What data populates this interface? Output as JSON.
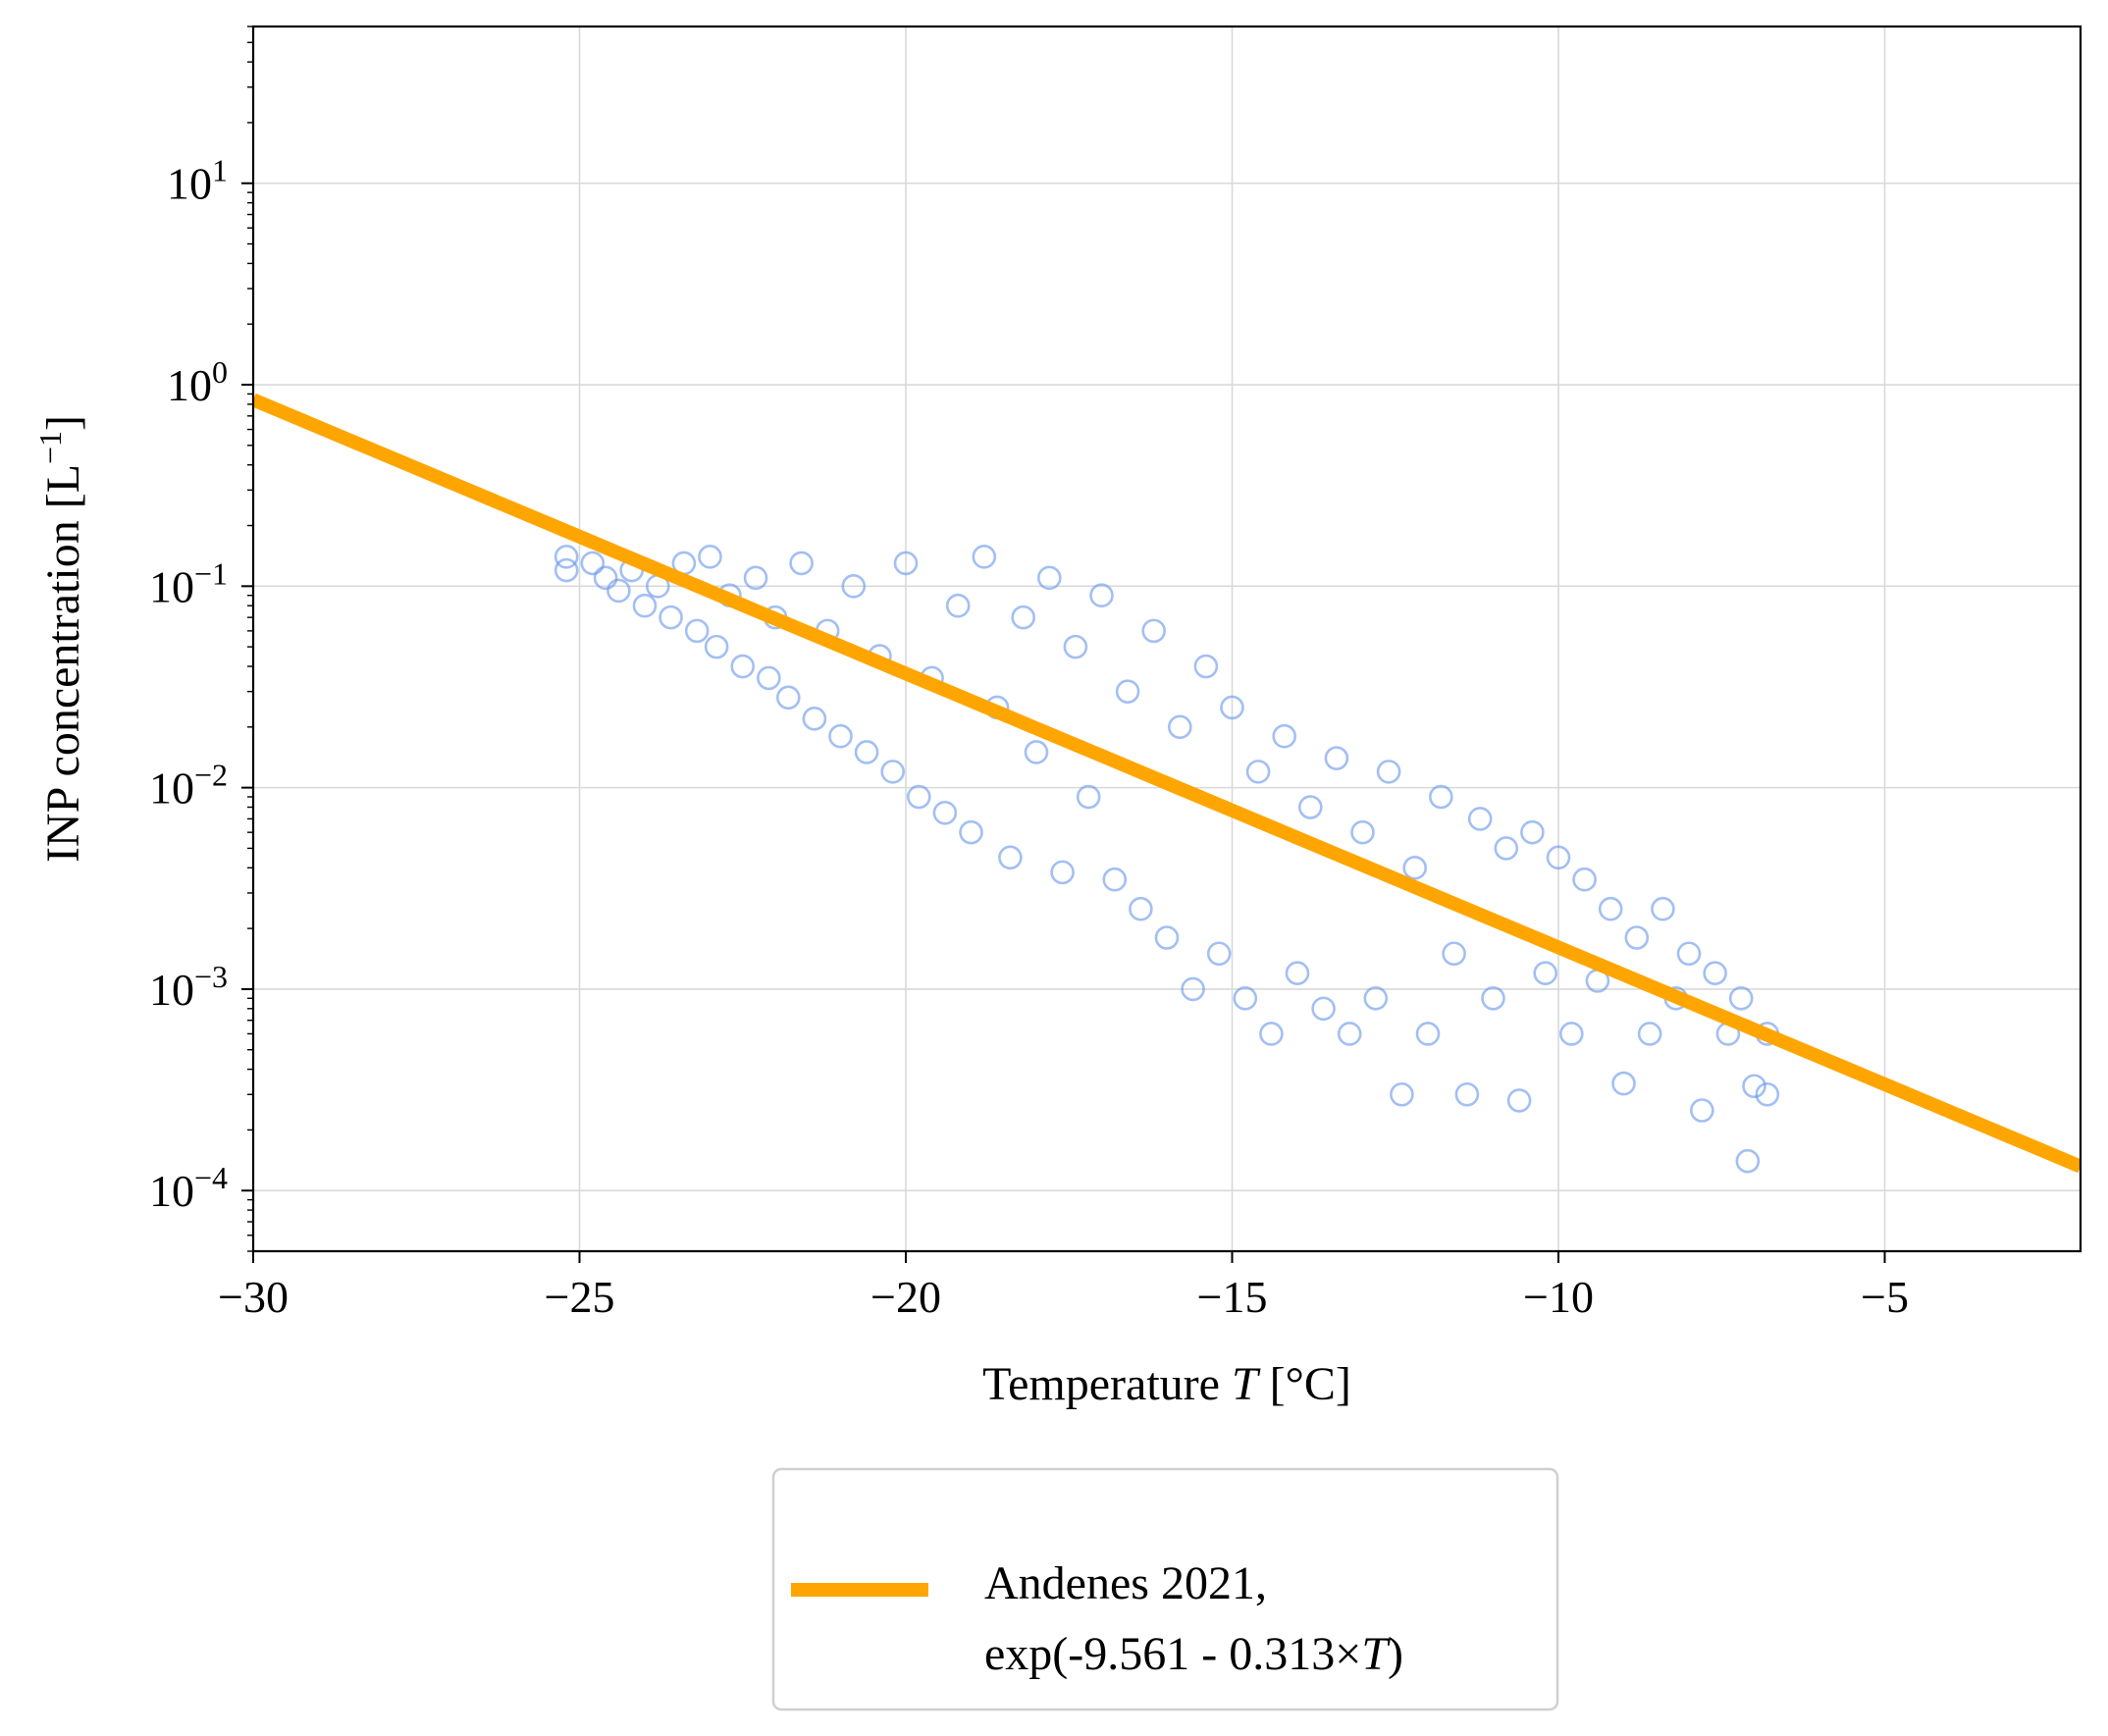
{
  "chart_data": {
    "type": "scatter",
    "xlabel": "Temperature T [°C]",
    "xlabel_parts": {
      "before": "Temperature ",
      "italic": "T",
      "after": " [°C]"
    },
    "ylabel": "INP concentration [L−1]",
    "ylabel_parts": {
      "base": "INP concentration [L",
      "sup": "−1",
      "end": "]"
    },
    "xlim": [
      -30,
      -2
    ],
    "ylim": [
      5e-05,
      60
    ],
    "yscale": "log",
    "x_ticks": [
      -30,
      -25,
      -20,
      -15,
      -10,
      -5
    ],
    "x_tick_labels": [
      "−30",
      "−25",
      "−20",
      "−15",
      "−10",
      "−5"
    ],
    "y_ticks": [
      0.0001,
      0.001,
      0.01,
      0.1,
      1,
      10
    ],
    "y_tick_labels": [
      {
        "base": "10",
        "exp": "−4"
      },
      {
        "base": "10",
        "exp": "−3"
      },
      {
        "base": "10",
        "exp": "−2"
      },
      {
        "base": "10",
        "exp": "−1"
      },
      {
        "base": "10",
        "exp": "0"
      },
      {
        "base": "10",
        "exp": "1"
      }
    ],
    "grid": true,
    "legend_position": "below plot",
    "colors": {
      "points": "#6495ED",
      "fit_line": "#FFA500"
    },
    "series": [
      {
        "kind": "line",
        "legend_line1": "Andenes 2021,",
        "legend_line2_before": "exp(-9.561 - 0.313×",
        "legend_line2_italic": "T",
        "legend_line2_after": ")",
        "intercept": -9.561,
        "slope": -0.313,
        "x": [
          -30,
          -2
        ]
      },
      {
        "kind": "scatter",
        "marker": "open-circle",
        "points": [
          [
            -25.2,
            0.14
          ],
          [
            -25.2,
            0.12
          ],
          [
            -24.8,
            0.13
          ],
          [
            -24.6,
            0.11
          ],
          [
            -24.4,
            0.095
          ],
          [
            -24.2,
            0.12
          ],
          [
            -24.0,
            0.08
          ],
          [
            -23.8,
            0.1
          ],
          [
            -23.6,
            0.07
          ],
          [
            -23.4,
            0.13
          ],
          [
            -23.2,
            0.06
          ],
          [
            -23.0,
            0.14
          ],
          [
            -22.9,
            0.05
          ],
          [
            -22.7,
            0.09
          ],
          [
            -22.5,
            0.04
          ],
          [
            -22.3,
            0.11
          ],
          [
            -22.1,
            0.035
          ],
          [
            -22.0,
            0.07
          ],
          [
            -21.8,
            0.028
          ],
          [
            -21.6,
            0.13
          ],
          [
            -21.4,
            0.022
          ],
          [
            -21.2,
            0.06
          ],
          [
            -21.0,
            0.018
          ],
          [
            -20.8,
            0.1
          ],
          [
            -20.6,
            0.015
          ],
          [
            -20.4,
            0.045
          ],
          [
            -20.2,
            0.012
          ],
          [
            -20.0,
            0.13
          ],
          [
            -19.8,
            0.009
          ],
          [
            -19.6,
            0.035
          ],
          [
            -19.4,
            0.0075
          ],
          [
            -19.2,
            0.08
          ],
          [
            -19.0,
            0.006
          ],
          [
            -18.8,
            0.14
          ],
          [
            -18.6,
            0.025
          ],
          [
            -18.4,
            0.0045
          ],
          [
            -18.2,
            0.07
          ],
          [
            -18.0,
            0.015
          ],
          [
            -17.8,
            0.11
          ],
          [
            -17.6,
            0.0038
          ],
          [
            -17.4,
            0.05
          ],
          [
            -17.2,
            0.009
          ],
          [
            -17.0,
            0.09
          ],
          [
            -16.8,
            0.0035
          ],
          [
            -16.6,
            0.03
          ],
          [
            -16.4,
            0.0025
          ],
          [
            -16.2,
            0.06
          ],
          [
            -16.0,
            0.0018
          ],
          [
            -15.8,
            0.02
          ],
          [
            -15.6,
            0.001
          ],
          [
            -15.4,
            0.04
          ],
          [
            -15.2,
            0.0015
          ],
          [
            -15.0,
            0.025
          ],
          [
            -14.8,
            0.0009
          ],
          [
            -14.6,
            0.012
          ],
          [
            -14.4,
            0.0006
          ],
          [
            -14.2,
            0.018
          ],
          [
            -14.0,
            0.0012
          ],
          [
            -13.8,
            0.008
          ],
          [
            -13.6,
            0.0008
          ],
          [
            -13.4,
            0.014
          ],
          [
            -13.2,
            0.0006
          ],
          [
            -13.0,
            0.006
          ],
          [
            -12.8,
            0.0009
          ],
          [
            -12.6,
            0.012
          ],
          [
            -12.4,
            0.0003
          ],
          [
            -12.2,
            0.004
          ],
          [
            -12.0,
            0.0006
          ],
          [
            -11.8,
            0.009
          ],
          [
            -11.6,
            0.0015
          ],
          [
            -11.4,
            0.0003
          ],
          [
            -11.2,
            0.007
          ],
          [
            -11.0,
            0.0009
          ],
          [
            -10.8,
            0.005
          ],
          [
            -10.6,
            0.00028
          ],
          [
            -10.4,
            0.006
          ],
          [
            -10.2,
            0.0012
          ],
          [
            -10.0,
            0.0045
          ],
          [
            -9.8,
            0.0006
          ],
          [
            -9.6,
            0.0035
          ],
          [
            -9.4,
            0.0011
          ],
          [
            -9.2,
            0.0025
          ],
          [
            -9.0,
            0.00034
          ],
          [
            -8.8,
            0.0018
          ],
          [
            -8.6,
            0.0006
          ],
          [
            -8.4,
            0.0025
          ],
          [
            -8.2,
            0.0009
          ],
          [
            -8.0,
            0.0015
          ],
          [
            -7.8,
            0.00025
          ],
          [
            -7.6,
            0.0012
          ],
          [
            -7.4,
            0.0006
          ],
          [
            -7.2,
            0.0009
          ],
          [
            -7.1,
            0.00014
          ],
          [
            -7.0,
            0.00033
          ],
          [
            -6.8,
            0.0006
          ],
          [
            -6.8,
            0.0003
          ]
        ]
      }
    ]
  }
}
